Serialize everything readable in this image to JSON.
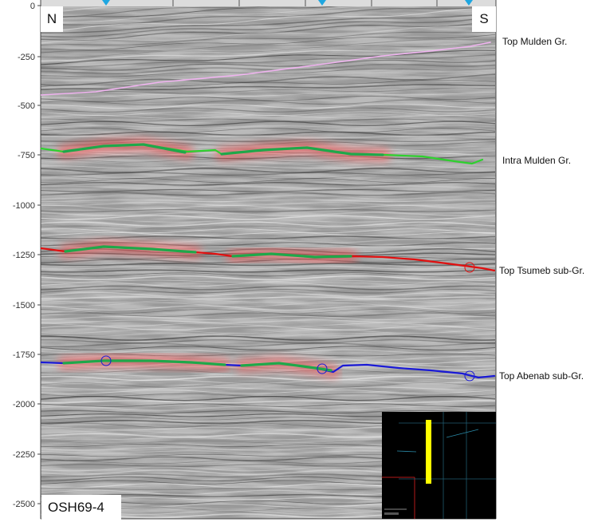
{
  "section": {
    "north_label": "N",
    "south_label": "S",
    "line_name": "OSH69-4",
    "depth_ticks": [
      "0",
      "-250",
      "-500",
      "-750",
      "-1000",
      "-1250",
      "-1500",
      "-1750",
      "-2000",
      "-2250",
      "-2500"
    ],
    "horizons": [
      {
        "label": "Top Mulden Gr.",
        "color": "#f0b4f0"
      },
      {
        "label": "Intra Mulden Gr.",
        "color": "#2ed12e"
      },
      {
        "label": "Top Tsumeb sub-Gr.",
        "color": "#e01010"
      },
      {
        "label": "Top Abenab sub-Gr.",
        "color": "#1a1ad6"
      }
    ],
    "picked_segment_color": "#1fa84a",
    "halo_color": "#ff4d4d",
    "inset_map": {
      "background": "#000000",
      "highlight_color": "#ffff00"
    }
  }
}
